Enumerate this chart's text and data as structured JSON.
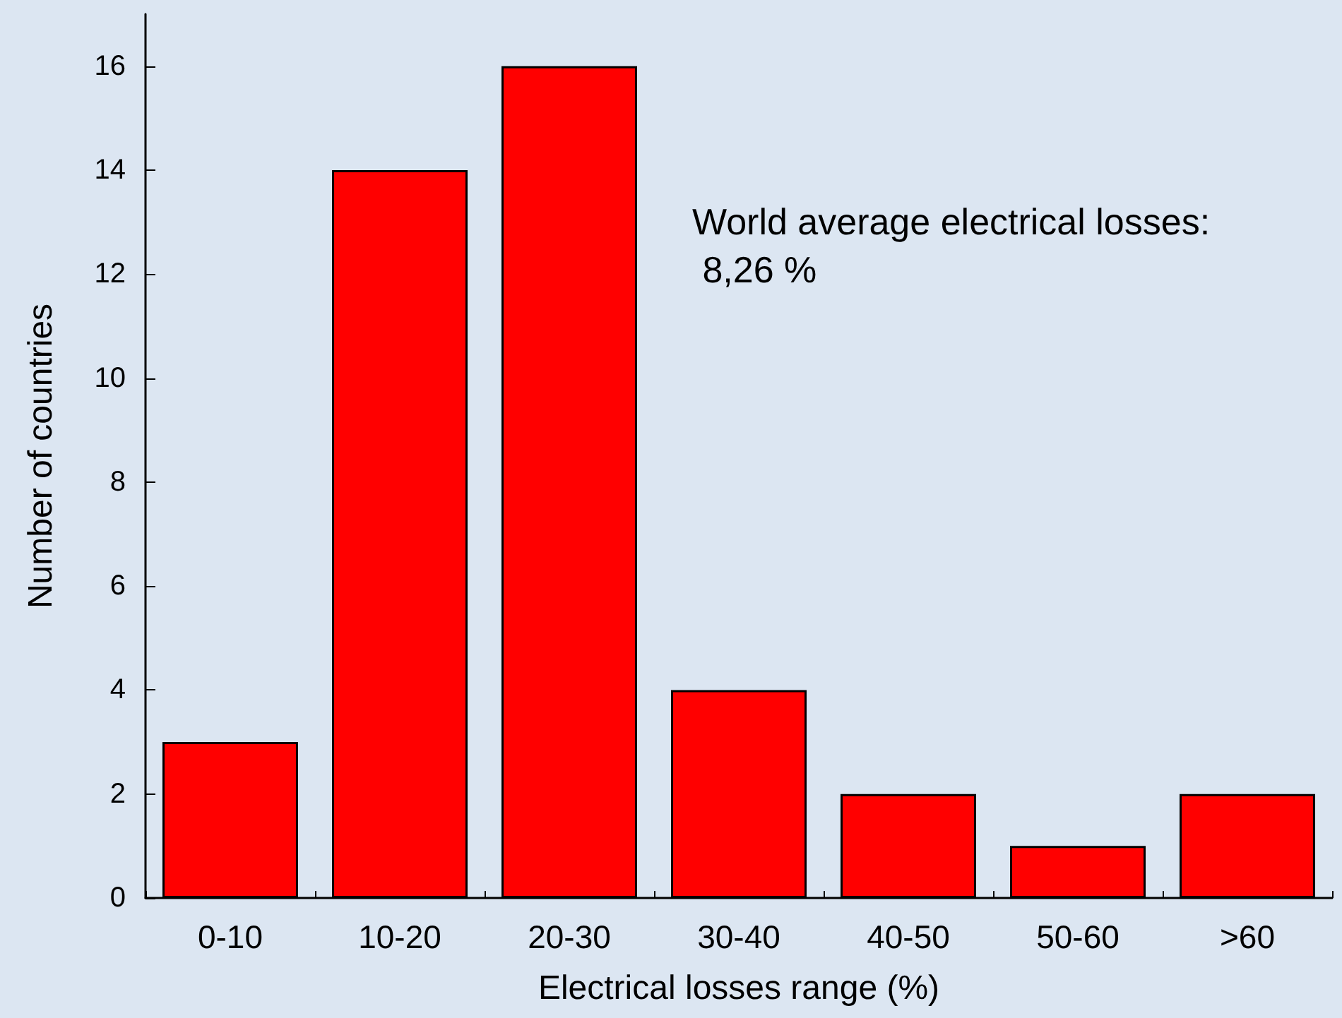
{
  "chart_data": {
    "type": "bar",
    "xlabel": "Electrical losses range (%)",
    "ylabel": "Number of countries",
    "categories": [
      "0-10",
      "10-20",
      "20-30",
      "30-40",
      "40-50",
      "50-60",
      ">60"
    ],
    "values": [
      3,
      14,
      16,
      4,
      2,
      1,
      2
    ],
    "color": "#ff0000",
    "ylim": [
      0,
      17
    ],
    "yticks": [
      0,
      2,
      4,
      6,
      8,
      10,
      12,
      14,
      16
    ],
    "grid": false,
    "annotations": [
      "World average electrical losses:\n 8,26 %"
    ]
  }
}
